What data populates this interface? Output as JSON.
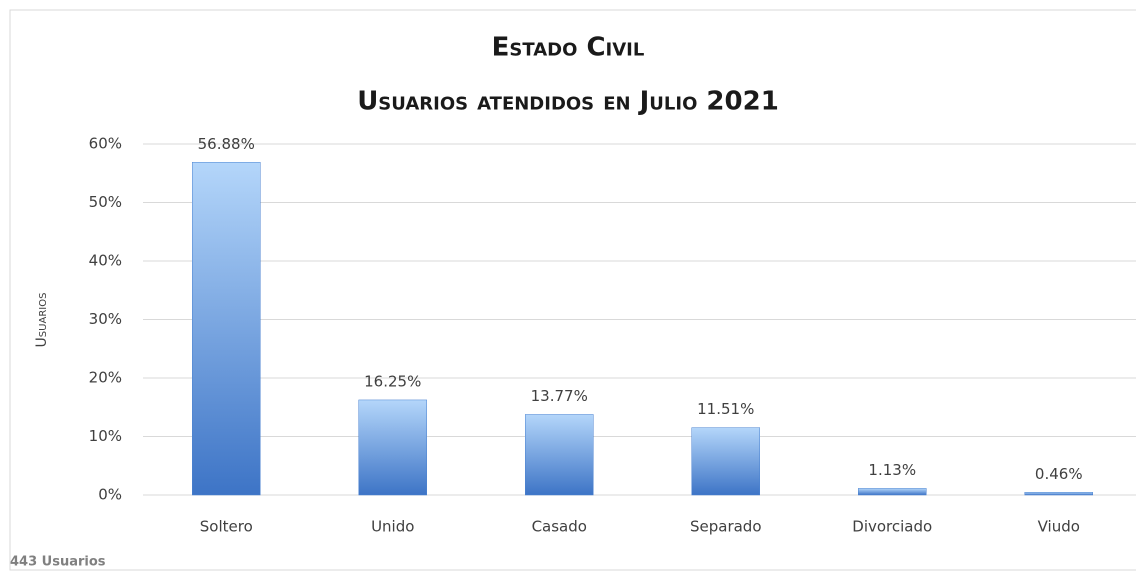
{
  "chart_data": {
    "type": "bar",
    "title": "Estado Civil",
    "subtitle": "Usuarios atendidos en Julio 2021",
    "y_label": "Usuarios",
    "annotation": "443 Usuarios",
    "categories": [
      "Soltero",
      "Unido",
      "Casado",
      "Separado",
      "Divorciado",
      "Viudo"
    ],
    "values": [
      56.88,
      16.25,
      13.77,
      11.51,
      1.13,
      0.46
    ],
    "value_labels": [
      "56.88%",
      "16.25%",
      "13.77%",
      "11.51%",
      "1.13%",
      "0.46%"
    ],
    "color": "#4a82d0",
    "ylim": [
      0,
      60
    ],
    "yticks": [
      {
        "value": 0,
        "label": "0%"
      },
      {
        "value": 10,
        "label": "10%"
      },
      {
        "value": 20,
        "label": "20%"
      },
      {
        "value": 30,
        "label": "30%"
      },
      {
        "value": 40,
        "label": "40%"
      },
      {
        "value": 50,
        "label": "50%"
      },
      {
        "value": 60,
        "label": "60%"
      }
    ],
    "grid": true
  }
}
